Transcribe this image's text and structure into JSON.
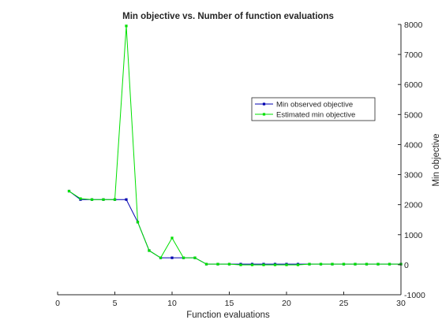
{
  "chart_data": {
    "type": "line",
    "title": "Min objective vs. Number of function evaluations",
    "xlabel": "Function evaluations",
    "ylabel": "Min objective",
    "xlim": [
      0,
      30
    ],
    "ylim": [
      -1000,
      8000
    ],
    "xticks": [
      "0",
      "5",
      "10",
      "15",
      "20",
      "25",
      "30"
    ],
    "yticks": [
      "-1000",
      "0",
      "1000",
      "2000",
      "3000",
      "4000",
      "5000",
      "6000",
      "7000",
      "8000"
    ],
    "y_axis_side": "right",
    "grid": false,
    "legend_position": "top-right",
    "x": [
      1,
      2,
      3,
      4,
      5,
      6,
      7,
      8,
      9,
      10,
      11,
      12,
      13,
      14,
      15,
      16,
      17,
      18,
      19,
      20,
      21,
      22,
      23,
      24,
      25,
      26,
      27,
      28,
      29,
      30
    ],
    "series": [
      {
        "name": "Min observed objective",
        "color": "#0000b0",
        "values": [
          2450,
          2170,
          2170,
          2170,
          2170,
          2170,
          1420,
          470,
          230,
          230,
          230,
          230,
          20,
          20,
          20,
          20,
          20,
          20,
          20,
          20,
          20,
          20,
          20,
          20,
          20,
          20,
          20,
          20,
          20,
          20
        ]
      },
      {
        "name": "Estimated min objective",
        "color": "#00e000",
        "values": [
          2450,
          2200,
          2170,
          2170,
          2170,
          7950,
          1420,
          470,
          230,
          890,
          230,
          230,
          20,
          20,
          20,
          -5,
          -5,
          -5,
          -5,
          -5,
          -5,
          20,
          20,
          20,
          20,
          20,
          20,
          20,
          20,
          20
        ]
      }
    ]
  }
}
